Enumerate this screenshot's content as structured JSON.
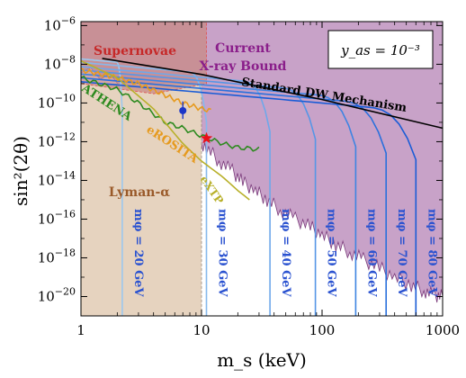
{
  "chart_data": {
    "type": "line",
    "xscale": "log",
    "yscale": "log",
    "xlim": [
      1,
      1000
    ],
    "ylim": [
      1e-21,
      1.6e-06
    ],
    "xlabel": "m_s (keV)",
    "ylabel": "sin²(2θ)",
    "xticks": [
      {
        "v": 1,
        "t": "1"
      },
      {
        "v": 10,
        "t": "10"
      },
      {
        "v": 100,
        "t": "100"
      },
      {
        "v": 1000,
        "t": "1000"
      }
    ],
    "yticks": [
      {
        "v": 1e-06,
        "b": "10",
        "e": "−6"
      },
      {
        "v": 1e-08,
        "b": "10",
        "e": "−8"
      },
      {
        "v": 1e-10,
        "b": "10",
        "e": "−10"
      },
      {
        "v": 1e-12,
        "b": "10",
        "e": "−12"
      },
      {
        "v": 1e-14,
        "b": "10",
        "e": "−14"
      },
      {
        "v": 1e-16,
        "b": "10",
        "e": "−16"
      },
      {
        "v": 1e-18,
        "b": "10",
        "e": "−18"
      },
      {
        "v": 1e-20,
        "b": "10",
        "e": "−20"
      }
    ],
    "annotation_box": "y_as = 10⁻³",
    "regions": [
      {
        "name": "Lyman-α",
        "color": "#e6d3bf",
        "label": "Lyman-α",
        "boundary": [
          [
            1,
            1e-21
          ],
          [
            10,
            1e-21
          ],
          [
            10,
            1e-09
          ],
          [
            1,
            1e-09
          ]
        ]
      },
      {
        "name": "Supernovae",
        "color": "#c88a85",
        "label": "Supernovae",
        "boundary": [
          [
            1,
            1e-09
          ],
          [
            1,
            1.6e-06
          ],
          [
            11,
            1.6e-06
          ],
          [
            11,
            1e-09
          ],
          [
            4,
            3e-10
          ]
        ]
      },
      {
        "name": "Current X-ray Bound",
        "color": "#c8a2c8",
        "label_lines": [
          "Current",
          "X-ray Bound"
        ]
      }
    ],
    "xray_bound": {
      "x": [
        1,
        3,
        5,
        7,
        9,
        11,
        14,
        18,
        22,
        28,
        35,
        45,
        60,
        80,
        100,
        130,
        170,
        220,
        300,
        400,
        550,
        700,
        850,
        1000
      ],
      "y": [
        8e-09,
        2.5e-10,
        1.5e-11,
        4e-12,
        1.5e-12,
        5e-13,
        1e-13,
        3e-14,
        8e-15,
        3e-15,
        1e-15,
        3e-16,
        1e-16,
        4e-17,
        1.5e-17,
        5e-18,
        2e-18,
        8e-19,
        3e-19,
        1e-19,
        4e-20,
        2e-20,
        1.2e-20,
        1e-20
      ]
    },
    "series": [
      {
        "name": "Standard DW Mechanism",
        "color": "#000000",
        "x": [
          1.5,
          10,
          100,
          1000
        ],
        "y": [
          2e-08,
          3e-09,
          1.5e-10,
          5e-12
        ]
      },
      {
        "name": "ATHENA",
        "color": "#2d8a1f",
        "x": [
          1,
          2,
          3,
          5,
          7,
          10,
          15,
          20,
          30
        ],
        "y": [
          2e-09,
          5e-10,
          1e-10,
          1e-11,
          5e-12,
          2e-12,
          8e-13,
          5e-13,
          4e-13
        ]
      },
      {
        "name": "eROSITA",
        "color": "#e69a1e",
        "x": [
          1,
          2,
          3,
          5,
          7,
          10,
          12
        ],
        "y": [
          5e-09,
          2e-09,
          1e-09,
          2.5e-10,
          1e-10,
          5e-11,
          4e-11
        ]
      },
      {
        "name": "eXTP",
        "color": "#b8b02a",
        "x": [
          1,
          2,
          4,
          7,
          10,
          15,
          20,
          25
        ],
        "y": [
          1.5e-08,
          2e-09,
          5e-11,
          8e-13,
          1e-13,
          1.5e-14,
          3e-15,
          1e-15
        ]
      }
    ],
    "mass_curves": [
      {
        "label": "mφ = 20 GeV",
        "x_edge": 2.2,
        "y_top": 1.5e-08,
        "color": "#9cc8ee"
      },
      {
        "label": "mφ = 30 GeV",
        "x_edge": 11,
        "y_top": 1e-08,
        "color": "#86b8ec"
      },
      {
        "label": "mφ = 40 GeV",
        "x_edge": 37,
        "y_top": 6e-09,
        "color": "#6ea8ea"
      },
      {
        "label": "mφ = 50 GeV",
        "x_edge": 88,
        "y_top": 4e-09,
        "color": "#5696e6"
      },
      {
        "label": "mφ = 60 GeV",
        "x_edge": 190,
        "y_top": 2.5e-09,
        "color": "#3e84e2"
      },
      {
        "label": "mφ = 70 GeV",
        "x_edge": 340,
        "y_top": 1.6e-09,
        "color": "#2a70dc"
      },
      {
        "label": "mφ = 80 GeV",
        "x_edge": 600,
        "y_top": 1e-09,
        "color": "#1a5cd6"
      }
    ],
    "markers": [
      {
        "shape": "circle",
        "x": 7,
        "y": 4e-11,
        "err_low": 1.5e-11,
        "err_high": 1.2e-10,
        "color": "#1c36c8"
      },
      {
        "shape": "star",
        "x": 11,
        "y": 1.5e-12,
        "color": "#e8101a"
      }
    ]
  }
}
